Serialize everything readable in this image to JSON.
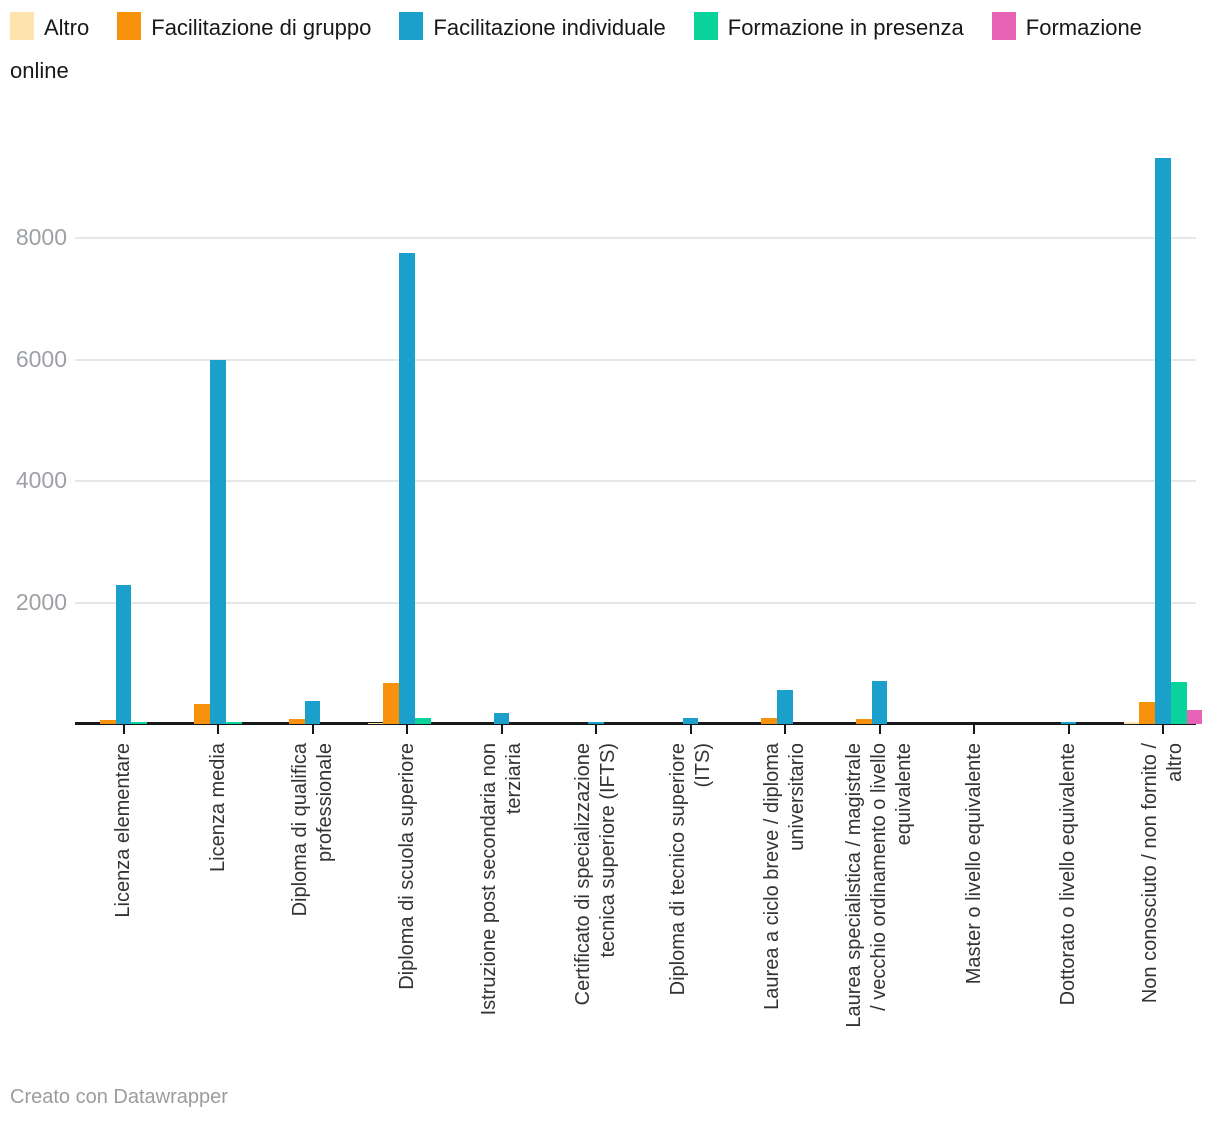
{
  "chart_data": {
    "type": "bar",
    "grouped": true,
    "title": "",
    "xlabel": "",
    "ylabel": "",
    "y_ticks": [
      2000,
      4000,
      6000,
      8000
    ],
    "ylim": [
      0,
      9600
    ],
    "grid": "horizontal",
    "legend_position": "top",
    "categories": [
      "Licenza elementare",
      "Licenza media",
      "Diploma di qualifica professionale",
      "Diploma di scuola superiore",
      "Istruzione post secondaria non terziaria",
      "Certificato di specializzazione tecnica superiore (IFTS)",
      "Diploma di tecnico superiore (ITS)",
      "Laurea a ciclo breve / diploma universitario",
      "Laurea specialistica / magistrale / vecchio ordinamento o livello equivalente",
      "Master o livello equivalente",
      "Dottorato o livello equivalente",
      "Non conosciuto / non fornito / altro"
    ],
    "series": [
      {
        "name": "Altro",
        "color": "#fce4ac",
        "values": [
          0,
          0,
          0,
          20,
          0,
          0,
          0,
          0,
          0,
          0,
          0,
          25
        ]
      },
      {
        "name": "Facilitazione di gruppo",
        "color": "#f8910b",
        "values": [
          65,
          330,
          90,
          670,
          0,
          0,
          0,
          100,
          90,
          0,
          0,
          355
        ]
      },
      {
        "name": "Facilitazione individuale",
        "color": "#1ba0cb",
        "values": [
          2280,
          6000,
          380,
          7760,
          175,
          40,
          95,
          560,
          700,
          0,
          30,
          9320
        ]
      },
      {
        "name": "Formazione in presenza",
        "color": "#0bd39c",
        "values": [
          40,
          35,
          0,
          95,
          0,
          0,
          0,
          0,
          0,
          0,
          0,
          685
        ]
      },
      {
        "name": "Formazione online",
        "color": "#e763b6",
        "values": [
          0,
          0,
          0,
          0,
          0,
          0,
          0,
          0,
          0,
          0,
          0,
          235
        ]
      }
    ]
  },
  "footer": {
    "credit": "Creato con Datawrapper"
  },
  "colors": {
    "gridline": "#e7e7e7",
    "axis": "#18181a",
    "y_tick_label": "#9da1a6",
    "x_tick_label": "#333333",
    "legend_text": "#18181a",
    "footer_text": "#9c9c9c",
    "background": "#ffffff"
  }
}
